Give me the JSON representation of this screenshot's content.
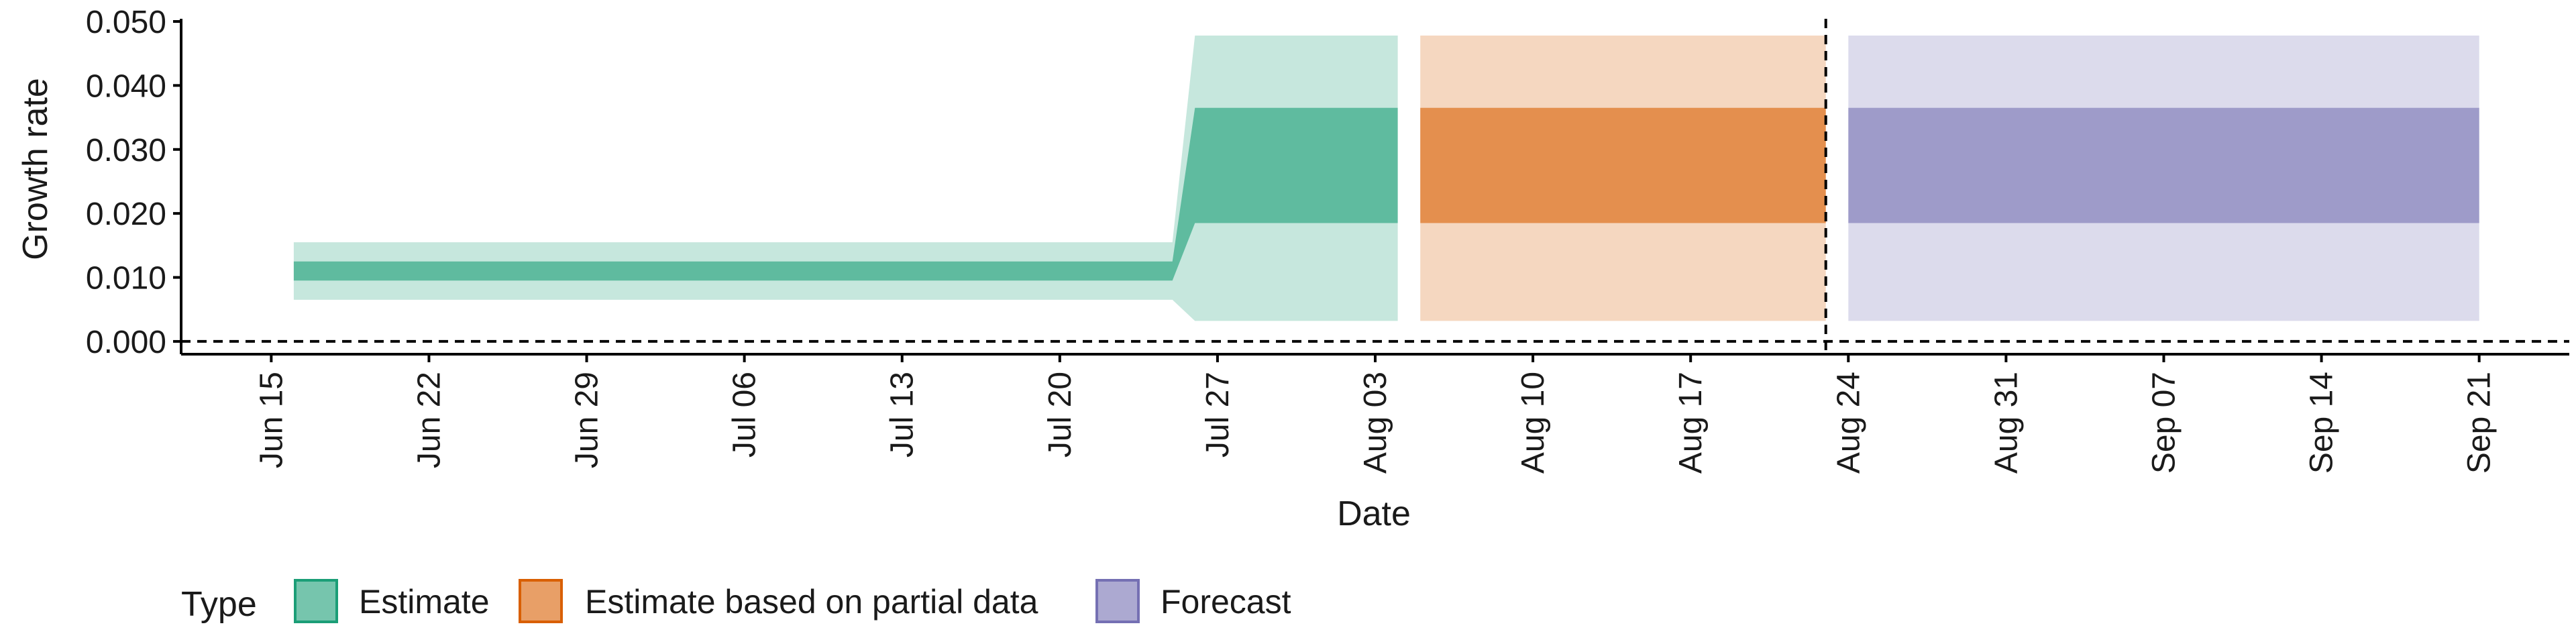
{
  "chart_data": {
    "type": "area",
    "xlabel": "Date",
    "ylabel": "Growth rate",
    "ylim": [
      -0.002,
      0.05
    ],
    "y_ticks": [
      "0.000",
      "0.010",
      "0.020",
      "0.030",
      "0.040",
      "0.050"
    ],
    "x_ticks": [
      "Jun 15",
      "Jun 22",
      "Jun 29",
      "Jul 06",
      "Jul 13",
      "Jul 20",
      "Jul 27",
      "Aug 03",
      "Aug 10",
      "Aug 17",
      "Aug 24",
      "Aug 31",
      "Sep 07",
      "Sep 14",
      "Sep 21"
    ],
    "x_range": [
      "2020-06-11",
      "2020-09-25"
    ],
    "reference_lines": {
      "horizontal_y": 0.0,
      "vertical_date": "2020-08-23",
      "style": "dashed"
    },
    "legend": {
      "title": "Type",
      "position": "bottom",
      "entries": [
        {
          "label": "Estimate",
          "color": "#1b9e77"
        },
        {
          "label": "Estimate based on partial data",
          "color": "#d95f02"
        },
        {
          "label": "Forecast",
          "color": "#7570b3"
        }
      ]
    },
    "series": [
      {
        "name": "Estimate",
        "color": "#1b9e77",
        "points": [
          {
            "date": "2020-06-16",
            "lower_90": 0.0065,
            "lower_50": 0.0095,
            "upper_50": 0.0125,
            "upper_90": 0.0155
          },
          {
            "date": "2020-07-25",
            "lower_90": 0.0065,
            "lower_50": 0.0095,
            "upper_50": 0.0125,
            "upper_90": 0.0155
          },
          {
            "date": "2020-07-26",
            "lower_90": 0.0032,
            "lower_50": 0.0185,
            "upper_50": 0.0365,
            "upper_90": 0.0478
          },
          {
            "date": "2020-08-04",
            "lower_90": 0.0032,
            "lower_50": 0.0185,
            "upper_50": 0.0365,
            "upper_90": 0.0478
          }
        ]
      },
      {
        "name": "Estimate based on partial data",
        "color": "#d95f02",
        "points": [
          {
            "date": "2020-08-05",
            "lower_90": 0.0032,
            "lower_50": 0.0185,
            "upper_50": 0.0365,
            "upper_90": 0.0478
          },
          {
            "date": "2020-08-23",
            "lower_90": 0.0032,
            "lower_50": 0.0185,
            "upper_50": 0.0365,
            "upper_90": 0.0478
          }
        ]
      },
      {
        "name": "Forecast",
        "color": "#7570b3",
        "points": [
          {
            "date": "2020-08-24",
            "lower_90": 0.0032,
            "lower_50": 0.0185,
            "upper_50": 0.0365,
            "upper_90": 0.0478
          },
          {
            "date": "2020-09-21",
            "lower_90": 0.0032,
            "lower_50": 0.0185,
            "upper_50": 0.0365,
            "upper_90": 0.0478
          }
        ]
      }
    ]
  }
}
